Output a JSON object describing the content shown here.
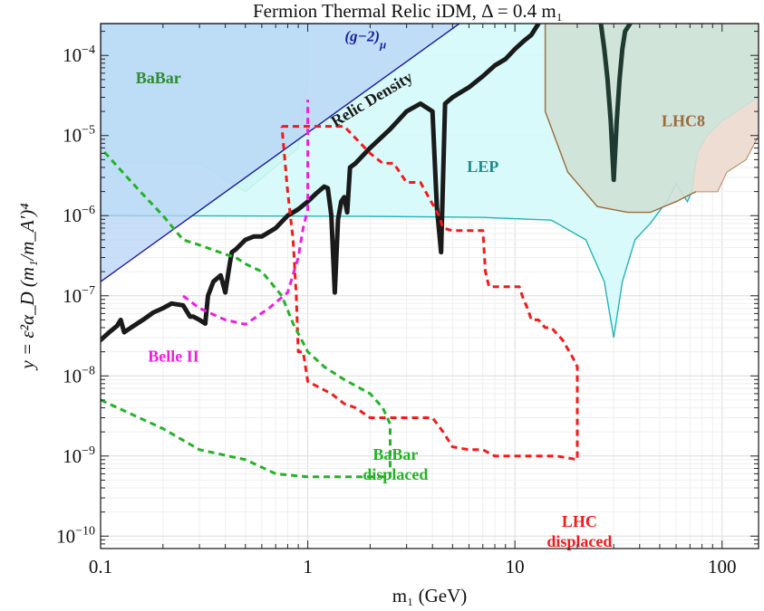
{
  "chart_data": {
    "type": "line",
    "title": "Fermion Thermal Relic iDM, Δ = 0.4 m₁",
    "xlabel": "m₁ (GeV)",
    "ylabel": "y = ε²α_D (m₁/m_A′)⁴",
    "x_scale": "log",
    "y_scale": "log",
    "xlim": [
      0.1,
      150
    ],
    "ylim": [
      7e-11,
      0.00025
    ],
    "x_ticks": [
      {
        "value": 0.1,
        "label": "0.1"
      },
      {
        "value": 1,
        "label": "1"
      },
      {
        "value": 10,
        "label": "10"
      },
      {
        "value": 100,
        "label": "100"
      }
    ],
    "y_ticks": [
      {
        "value": 1e-10,
        "exp": "−10"
      },
      {
        "value": 1e-09,
        "exp": "−9"
      },
      {
        "value": 1e-08,
        "exp": "−8"
      },
      {
        "value": 1e-07,
        "exp": "−7"
      },
      {
        "value": 1e-06,
        "exp": "−6"
      },
      {
        "value": 1e-05,
        "exp": "−5"
      },
      {
        "value": 0.0001,
        "exp": "−4"
      }
    ],
    "grid": true,
    "regions": [
      {
        "name": "BaBar",
        "label": "BaBar",
        "fill": "#a9dcd6",
        "stroke": "#2ca02c",
        "label_color": "#2e8b2e",
        "label_at": [
          0.19,
          4.5e-05
        ],
        "points": [
          [
            0.1,
            0.00025
          ],
          [
            0.1,
            4.6e-06
          ],
          [
            0.3,
            4.5e-06
          ],
          [
            0.5,
            2e-06
          ],
          [
            0.9,
            7e-06
          ],
          [
            1.0,
            5e-05
          ],
          [
            1.0,
            0.00025
          ]
        ]
      },
      {
        "name": "LEP",
        "label": "LEP",
        "fill": "#d4fafa",
        "stroke": "#26b3b3",
        "label_color": "#1f8c8c",
        "label_at": [
          7,
          3.5e-06
        ],
        "points": [
          [
            0.1,
            1e-06
          ],
          [
            2,
            9.8e-07
          ],
          [
            7,
            9.5e-07
          ],
          [
            15,
            8.8e-07
          ],
          [
            22,
            5e-07
          ],
          [
            27,
            1.5e-07
          ],
          [
            30,
            3e-08
          ],
          [
            33,
            1.5e-07
          ],
          [
            38,
            5e-07
          ],
          [
            45,
            8e-07
          ],
          [
            55,
            1.6e-06
          ],
          [
            60,
            2.5e-06
          ],
          [
            65,
            1.8e-06
          ],
          [
            68,
            1.5e-06
          ],
          [
            72,
            2.1e-06
          ],
          [
            76,
            6e-06
          ],
          [
            85,
            1e-05
          ],
          [
            100,
            1.5e-05
          ],
          [
            150,
            3e-05
          ],
          [
            150,
            0.00025
          ],
          [
            0.1,
            0.00025
          ]
        ]
      },
      {
        "name": "LHC8",
        "label": "LHC8",
        "fill": "#cfe1d6",
        "stroke": "#9c6b3b",
        "label_color": "#9c6b3b",
        "label_at": [
          65,
          1.3e-05
        ],
        "points": [
          [
            14,
            0.00025
          ],
          [
            14,
            2e-05
          ],
          [
            18,
            3.5e-06
          ],
          [
            25,
            1.3e-06
          ],
          [
            35,
            1.1e-06
          ],
          [
            45,
            1.1e-06
          ],
          [
            60,
            1.5e-06
          ],
          [
            75,
            2e-06
          ],
          [
            95,
            2e-06
          ],
          [
            105,
            3.5e-06
          ],
          [
            130,
            5e-06
          ],
          [
            150,
            1e-05
          ],
          [
            150,
            0.00025
          ]
        ]
      },
      {
        "name": "LHC8-LEP-overlap",
        "fill": "#f1dcd2",
        "stroke": "none",
        "points": [
          [
            72,
            2.1e-06
          ],
          [
            76,
            6e-06
          ],
          [
            85,
            1e-05
          ],
          [
            100,
            1.5e-05
          ],
          [
            150,
            3e-05
          ],
          [
            150,
            1e-05
          ],
          [
            130,
            5e-06
          ],
          [
            105,
            3.5e-06
          ],
          [
            95,
            2e-06
          ],
          [
            75,
            2e-06
          ]
        ]
      },
      {
        "name": "g-2 muon",
        "label": "(g−2)_μ",
        "fill": "#b7d3f5",
        "stroke": "#1c1c9e",
        "label_color": "#1c1c9e",
        "label_at": [
          1.9,
          0.00015
        ],
        "points": [
          [
            0.1,
            1.5e-07
          ],
          [
            5.4,
            0.00025
          ],
          [
            0.1,
            0.00025
          ]
        ]
      }
    ],
    "series": [
      {
        "name": "Relic Density",
        "label": "Relic Density",
        "color": "#1a1a1a",
        "style": "solid",
        "width": 5,
        "label_at": [
          2.1,
          2.5e-05
        ],
        "label_rotate": -31,
        "x": [
          0.1,
          0.11,
          0.12,
          0.125,
          0.13,
          0.14,
          0.16,
          0.18,
          0.2,
          0.22,
          0.25,
          0.27,
          0.28,
          0.3,
          0.32,
          0.33,
          0.35,
          0.38,
          0.4,
          0.42,
          0.43,
          0.45,
          0.5,
          0.55,
          0.6,
          0.7,
          0.8,
          0.9,
          1.0,
          1.1,
          1.2,
          1.25,
          1.3,
          1.35,
          1.4,
          1.45,
          1.5,
          1.55,
          1.6,
          1.7,
          2.0,
          2.5,
          3.0,
          3.5,
          4.0,
          4.2,
          4.4,
          4.6,
          5.0,
          6.0,
          7.0,
          8.0,
          9.0,
          10.0,
          11.0,
          12.0,
          13.0
        ],
        "y": [
          2.8e-08,
          3.5e-08,
          4.2e-08,
          5e-08,
          3.5e-08,
          4e-08,
          5e-08,
          6.2e-08,
          7e-08,
          8e-08,
          7.6e-08,
          5.5e-08,
          5.5e-08,
          5e-08,
          4.5e-08,
          1e-07,
          1.5e-07,
          1.8e-07,
          1.1e-07,
          2.5e-07,
          3.5e-07,
          3.8e-07,
          5e-07,
          5.5e-07,
          5.5e-07,
          7e-07,
          1e-06,
          1.2e-06,
          1.5e-06,
          1.9e-06,
          2.3e-06,
          2.2e-06,
          1e-06,
          1.1e-07,
          9e-07,
          1.5e-06,
          1.7e-06,
          1.1e-06,
          4e-06,
          4.5e-06,
          7e-06,
          1.2e-05,
          2e-05,
          2.5e-05,
          2e-05,
          1.3e-06,
          3.5e-07,
          2.5e-05,
          3e-05,
          4e-05,
          5.5e-05,
          7.5e-05,
          9e-05,
          0.00012,
          0.00015,
          0.00018,
          0.00025
        ]
      },
      {
        "name": "LHC8 relic dip",
        "color": "#1f3a31",
        "style": "solid",
        "width": 5,
        "x": [
          26,
          27,
          28,
          29,
          30,
          31,
          32,
          33,
          34,
          36
        ],
        "y": [
          0.00025,
          0.00012,
          5e-05,
          1.5e-05,
          2.8e-06,
          1.5e-05,
          5e-05,
          0.00012,
          0.0002,
          0.00025
        ]
      },
      {
        "name": "Belle II",
        "label": "Belle II",
        "color": "#ee1ee0",
        "style": "dashed",
        "width": 3,
        "label_at": [
          0.225,
          1.5e-08
        ],
        "x": [
          0.25,
          0.3,
          0.4,
          0.5,
          0.65,
          0.8,
          0.9,
          0.95,
          1.0,
          1.0
        ],
        "y": [
          1e-07,
          7e-08,
          5e-08,
          4.4e-08,
          7e-08,
          1.1e-07,
          3e-07,
          7e-07,
          1.2e-06,
          2.8e-05
        ]
      },
      {
        "name": "LHC displaced",
        "label": "LHC\ndisplaced",
        "color": "#f41a1a",
        "style": "dashed",
        "width": 3,
        "label_at": [
          20.5,
          1.3e-10
        ],
        "x": [
          0.75,
          0.9,
          1.0,
          1.1,
          1.3,
          1.5,
          2.0,
          2.3,
          2.6,
          3.0,
          3.5,
          4.0,
          4.3,
          4.5,
          5.0,
          6.0,
          6.5,
          7.0,
          7.2,
          7.5,
          8.0,
          9.0,
          10.5,
          11.0,
          11.5,
          12.0,
          13.0,
          14.0,
          15.0,
          17.0,
          19.0,
          20.0,
          20.0,
          16.0,
          13.0,
          10.0,
          8.0,
          7.0,
          6.0,
          5.0,
          4.5,
          4.0,
          3.0,
          2.5,
          2.0,
          1.7,
          1.5,
          1.3,
          1.1,
          1.0,
          0.95,
          0.9,
          0.88,
          0.85,
          0.8,
          0.75
        ],
        "y": [
          1.3e-05,
          1.3e-05,
          1.3e-05,
          1.3e-05,
          1.3e-05,
          1.3e-05,
          6e-06,
          4.5e-06,
          4.5e-06,
          2.6e-06,
          2.6e-06,
          1.4e-06,
          1e-06,
          7e-07,
          6.5e-07,
          6.5e-07,
          6.5e-07,
          6.5e-07,
          2e-07,
          1.3e-07,
          1.3e-07,
          1.3e-07,
          1.3e-07,
          9e-08,
          7e-08,
          5e-08,
          5e-08,
          4e-08,
          4e-08,
          2.8e-08,
          1.7e-08,
          1.3e-08,
          9e-10,
          1e-09,
          1e-09,
          1e-09,
          1e-09,
          1.2e-09,
          1.2e-09,
          1.3e-09,
          2e-09,
          3e-09,
          3e-09,
          3e-09,
          3e-09,
          4e-09,
          4.5e-09,
          6e-09,
          7.5e-09,
          8.5e-09,
          2e-08,
          2e-08,
          1e-07,
          5e-07,
          2e-06,
          1.3e-05
        ]
      },
      {
        "name": "BaBar displaced",
        "label": "BaBar\ndisplaced",
        "color": "#23b327",
        "style": "dashed",
        "width": 3,
        "label_at": [
          2.65,
          9e-10
        ],
        "x": [
          0.1,
          0.2,
          0.3,
          0.5,
          0.7,
          1.0,
          1.5,
          2.5,
          2.5,
          2.3,
          2.0,
          1.5,
          1.2,
          1.0,
          0.85,
          0.75,
          0.6,
          0.5,
          0.45,
          0.4,
          0.3,
          0.25,
          0.2,
          0.15,
          0.1
        ],
        "y": [
          5e-09,
          2.2e-09,
          1.2e-09,
          9e-10,
          6e-10,
          5.5e-10,
          5.5e-10,
          5.5e-10,
          2.5e-09,
          4e-09,
          6e-09,
          9e-09,
          1.3e-08,
          2e-08,
          4.5e-08,
          1e-07,
          2e-07,
          2.5e-07,
          3e-07,
          3.3e-07,
          4.3e-07,
          5e-07,
          1e-06,
          2.2e-06,
          7e-06
        ]
      }
    ]
  }
}
